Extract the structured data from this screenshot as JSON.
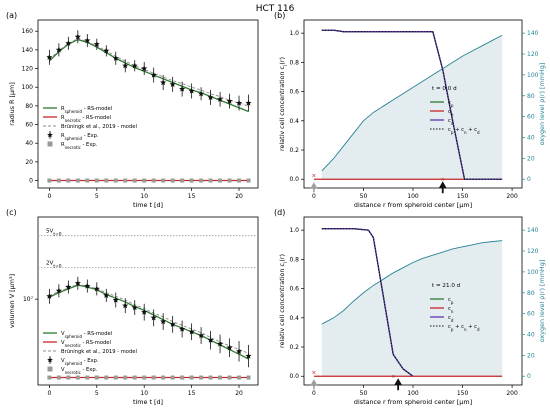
{
  "figure": {
    "title": "HCT 116"
  },
  "colors": {
    "rs_model": "#2e7d32",
    "necrotic": "#c62828",
    "bruningk": "#8c8c8c",
    "experiment": "#111111",
    "exp_necrotic": "#999999",
    "cp": "#2e7d32",
    "cn": "#c62828",
    "cd": "#5e35b1",
    "oxygen": "#2a8396",
    "oxygen_fill": "#e3ecee",
    "oxygen_axis": "#2a8396"
  },
  "chart_data": [
    {
      "id": "a",
      "panel_label": "(a)",
      "type": "line",
      "xlabel": "time t [d]",
      "ylabel": "radius R [μm]",
      "xlim": [
        -1.2,
        22
      ],
      "ylim": [
        -8,
        172
      ],
      "xticks": [
        0,
        5,
        10,
        15,
        20
      ],
      "yticks": [
        0,
        20,
        40,
        60,
        80,
        100,
        120,
        140,
        160
      ],
      "legend_position": "center-left",
      "legend": [
        {
          "label": "R_spheroid - RS-model",
          "style": "rs"
        },
        {
          "label": "R_necrotic - RS-model",
          "style": "nec"
        },
        {
          "label": "Brüningk et al., 2019 - model",
          "style": "brun"
        },
        {
          "label": "R_spheroid - Exp.",
          "style": "exp"
        },
        {
          "label": "R_necrotic - Exp.",
          "style": "expnec"
        }
      ],
      "series": [
        {
          "name": "R_spheroid - RS-model",
          "style": "rs",
          "x": [
            0,
            1,
            2,
            3,
            4,
            5,
            6,
            7,
            8,
            9,
            10,
            11,
            12,
            13,
            14,
            15,
            16,
            17,
            18,
            19,
            20,
            21
          ],
          "y": [
            128,
            138,
            146,
            151,
            148,
            143,
            137,
            131,
            126,
            121,
            117,
            113,
            109,
            105,
            101,
            97,
            94,
            90,
            86,
            82,
            78,
            74
          ]
        },
        {
          "name": "Brüningk et al., 2019 - model",
          "style": "brun",
          "x": [
            0,
            1,
            2,
            3,
            4,
            5,
            6,
            7,
            8,
            9,
            10,
            11,
            12,
            13,
            14,
            15,
            16,
            17,
            18,
            19,
            20,
            21
          ],
          "y": [
            130,
            139,
            147,
            152,
            149,
            144,
            139,
            133,
            128,
            123,
            119,
            115,
            111,
            107,
            104,
            100,
            97,
            93,
            90,
            86,
            83,
            80
          ]
        },
        {
          "name": "R_spheroid - Exp.",
          "style": "exp",
          "x": [
            0,
            1,
            2,
            3,
            4,
            5,
            6,
            7,
            8,
            9,
            10,
            11,
            12,
            13,
            14,
            15,
            16,
            17,
            18,
            19,
            20,
            21
          ],
          "y": [
            132,
            140,
            147,
            154,
            150,
            146,
            139,
            131,
            123,
            123,
            120,
            113,
            105,
            103,
            98,
            96,
            93,
            89,
            87,
            85,
            83,
            83
          ],
          "err": [
            8,
            7,
            7,
            7,
            7,
            6,
            6,
            7,
            7,
            6,
            7,
            8,
            8,
            8,
            8,
            8,
            7,
            8,
            8,
            8,
            8,
            9
          ]
        },
        {
          "name": "R_necrotic - RS-model",
          "style": "nec",
          "x": [
            0,
            21
          ],
          "y": [
            0,
            0
          ]
        },
        {
          "name": "R_necrotic - Exp.",
          "style": "expnec",
          "x": [
            0,
            1,
            2,
            3,
            4,
            5,
            6,
            7,
            8,
            9,
            10,
            11,
            12,
            13,
            14,
            15,
            16,
            17,
            18,
            19,
            20,
            21
          ],
          "y": [
            0,
            0,
            0,
            0,
            0,
            0,
            0,
            0,
            0,
            0,
            0,
            0,
            0,
            0,
            0,
            0,
            0,
            0,
            0,
            0,
            0,
            0
          ]
        }
      ]
    },
    {
      "id": "b",
      "panel_label": "(b)",
      "type": "line",
      "xlabel": "distance r from spheroid center [μm]",
      "ylabel": "relativ cell concentration c_i(r)",
      "y2label": "oxygen level ρ(r) [mmHg]",
      "xlim": [
        -10,
        210
      ],
      "ylim": [
        -0.06,
        1.09
      ],
      "y2lim": [
        -8.4,
        152.6
      ],
      "xticks": [
        0,
        50,
        100,
        150,
        200
      ],
      "yticks": [
        0.0,
        0.2,
        0.4,
        0.6,
        0.8,
        1.0
      ],
      "y2ticks": [
        0,
        20,
        40,
        60,
        80,
        100,
        120,
        140
      ],
      "annotation": "t = 0.0 d",
      "legend": [
        {
          "label": "c_p",
          "style": "cp"
        },
        {
          "label": "c_n",
          "style": "cn"
        },
        {
          "label": "c_d",
          "style": "cd"
        },
        {
          "label": "c_p + c_n + c_d",
          "style": "sum"
        }
      ],
      "series": [
        {
          "name": "c_p",
          "style": "cp",
          "x": [
            8,
            20,
            30,
            120,
            130,
            140,
            152,
            160,
            190
          ],
          "y": [
            1.02,
            1.02,
            1.01,
            1.01,
            0.75,
            0.4,
            0.0,
            0.0,
            0.0
          ]
        },
        {
          "name": "c_d",
          "style": "cd",
          "x": [
            8,
            20,
            30,
            120,
            130,
            140,
            152,
            160,
            190
          ],
          "y": [
            1.02,
            1.02,
            1.01,
            1.01,
            0.75,
            0.4,
            0.0,
            0.0,
            0.0
          ]
        },
        {
          "name": "c_p + c_n + c_d",
          "style": "sum",
          "x": [
            8,
            20,
            30,
            120,
            130,
            140,
            152,
            160,
            190
          ],
          "y": [
            1.02,
            1.02,
            1.01,
            1.01,
            0.75,
            0.4,
            0.0,
            0.0,
            0.0
          ]
        },
        {
          "name": "c_n",
          "style": "cn",
          "x": [
            0,
            190
          ],
          "y": [
            0,
            0
          ]
        },
        {
          "name": "oxygen",
          "style": "oxy",
          "axis": "y2",
          "x": [
            8,
            20,
            30,
            40,
            50,
            60,
            70,
            80,
            90,
            100,
            110,
            120,
            130,
            140,
            150,
            160,
            170,
            180,
            190
          ],
          "y": [
            8,
            20,
            32,
            44,
            56,
            64,
            70,
            76,
            82,
            88,
            94,
            100,
            106,
            112,
            118,
            123,
            128,
            133,
            138
          ]
        }
      ],
      "markers": {
        "cross_x": 0,
        "tick_x": 130,
        "arrow_x": 130
      }
    },
    {
      "id": "c",
      "panel_label": "(c)",
      "type": "line",
      "xlabel": "time t [d]",
      "ylabel": "volumen V [μm³]",
      "xlim": [
        -1.2,
        22
      ],
      "ylim": [
        -8,
        172
      ],
      "xticks": [
        0,
        5,
        10,
        15,
        20
      ],
      "ytick_label": "10⁷",
      "ytick_value": 84,
      "hlines": [
        {
          "label": "5V_{t=0}",
          "value": 152
        },
        {
          "label": "2V_{t=0}",
          "value": 118
        }
      ],
      "legend_position": "bottom-left",
      "legend": [
        {
          "label": "V_spheroid - RS-model",
          "style": "rs"
        },
        {
          "label": "V_necrotic - RS-model",
          "style": "nec"
        },
        {
          "label": "Brüningk et al., 2019 - model",
          "style": "brun"
        },
        {
          "label": "V_spheroid - Exp.",
          "style": "exp"
        },
        {
          "label": "V_necrotic - Exp.",
          "style": "expnec"
        }
      ],
      "series": [
        {
          "name": "V_spheroid - RS-model",
          "style": "rs",
          "x": [
            0,
            1,
            2,
            3,
            4,
            5,
            6,
            7,
            8,
            9,
            10,
            11,
            12,
            13,
            14,
            15,
            16,
            17,
            18,
            19,
            20,
            21
          ],
          "y": [
            86,
            91,
            95,
            99,
            97,
            94,
            89,
            85,
            81,
            76,
            72,
            67,
            62,
            57,
            53,
            49,
            45,
            40,
            35,
            30,
            25,
            20
          ]
        },
        {
          "name": "Brüningk et al., 2019 - model",
          "style": "brun",
          "x": [
            0,
            1,
            2,
            3,
            4,
            5,
            6,
            7,
            8,
            9,
            10,
            11,
            12,
            13,
            14,
            15,
            16,
            17,
            18,
            19,
            20,
            21
          ],
          "y": [
            88,
            92,
            96,
            100,
            98,
            95,
            91,
            87,
            83,
            78,
            74,
            69,
            65,
            60,
            56,
            52,
            48,
            43,
            38,
            34,
            30,
            26
          ]
        },
        {
          "name": "V_spheroid - Exp.",
          "style": "exp",
          "x": [
            0,
            1,
            2,
            3,
            4,
            5,
            6,
            7,
            8,
            9,
            10,
            11,
            12,
            13,
            14,
            15,
            16,
            17,
            18,
            19,
            20,
            21
          ],
          "y": [
            87,
            93,
            97,
            101,
            98,
            95,
            88,
            83,
            77,
            75,
            70,
            64,
            60,
            57,
            52,
            49,
            45,
            40,
            36,
            32,
            28,
            23
          ],
          "err": [
            8,
            7,
            7,
            7,
            7,
            7,
            7,
            8,
            8,
            8,
            9,
            9,
            9,
            9,
            9,
            9,
            9,
            10,
            10,
            10,
            11,
            12
          ]
        },
        {
          "name": "V_necrotic - RS-model",
          "style": "nec",
          "x": [
            0,
            21
          ],
          "y": [
            0,
            0
          ]
        },
        {
          "name": "V_necrotic - Exp.",
          "style": "expnec",
          "x": [
            0,
            1,
            2,
            3,
            4,
            5,
            6,
            7,
            8,
            9,
            10,
            11,
            12,
            13,
            14,
            15,
            16,
            17,
            18,
            19,
            20,
            21
          ],
          "y": [
            0,
            0,
            0,
            0,
            0,
            0,
            0,
            0,
            0,
            0,
            0,
            0,
            0,
            0,
            0,
            0,
            0,
            0,
            0,
            0,
            0,
            0
          ]
        }
      ]
    },
    {
      "id": "d",
      "panel_label": "(d)",
      "type": "line",
      "xlabel": "distance r from spheroid center [μm]",
      "ylabel": "relativ cell concentration c_i(r)",
      "y2label": "oxygen level ρ(r) [mmHg]",
      "xlim": [
        -10,
        210
      ],
      "ylim": [
        -0.06,
        1.09
      ],
      "y2lim": [
        -8.4,
        152.6
      ],
      "xticks": [
        0,
        50,
        100,
        150,
        200
      ],
      "yticks": [
        0.0,
        0.2,
        0.4,
        0.6,
        0.8,
        1.0
      ],
      "y2ticks": [
        0,
        20,
        40,
        60,
        80,
        100,
        120,
        140
      ],
      "annotation": "t = 21.0 d",
      "legend": [
        {
          "label": "c_p",
          "style": "cp"
        },
        {
          "label": "c_n",
          "style": "cn"
        },
        {
          "label": "c_d",
          "style": "cd"
        },
        {
          "label": "c_p + c_n + c_d",
          "style": "sum"
        }
      ],
      "series": [
        {
          "name": "c_p",
          "style": "cp",
          "x": [
            8,
            20,
            40,
            55,
            60,
            70,
            80,
            90,
            100
          ],
          "y": [
            1.01,
            1.01,
            1.01,
            1.0,
            0.95,
            0.55,
            0.15,
            0.05,
            0.0
          ]
        },
        {
          "name": "c_d",
          "style": "cd",
          "x": [
            8,
            20,
            40,
            55,
            60,
            70,
            80,
            90,
            100
          ],
          "y": [
            1.01,
            1.01,
            1.01,
            1.0,
            0.95,
            0.55,
            0.15,
            0.05,
            0.0
          ]
        },
        {
          "name": "c_p + c_n + c_d",
          "style": "sum",
          "x": [
            8,
            20,
            40,
            55,
            60,
            70,
            80,
            90,
            100
          ],
          "y": [
            1.01,
            1.01,
            1.01,
            1.0,
            0.95,
            0.55,
            0.15,
            0.05,
            0.0
          ]
        },
        {
          "name": "c_n",
          "style": "cn",
          "x": [
            0,
            190
          ],
          "y": [
            0,
            0
          ]
        },
        {
          "name": "oxygen",
          "style": "oxy",
          "axis": "y2",
          "x": [
            8,
            20,
            30,
            40,
            50,
            60,
            70,
            80,
            90,
            100,
            110,
            120,
            130,
            140,
            150,
            160,
            170,
            180,
            190
          ],
          "y": [
            50,
            56,
            63,
            72,
            80,
            87,
            93,
            99,
            104,
            109,
            113,
            116,
            119,
            122,
            124,
            126,
            128,
            129,
            130
          ]
        }
      ],
      "markers": {
        "cross_x": 0,
        "tick_x": 80,
        "arrow_x": 85
      }
    }
  ]
}
